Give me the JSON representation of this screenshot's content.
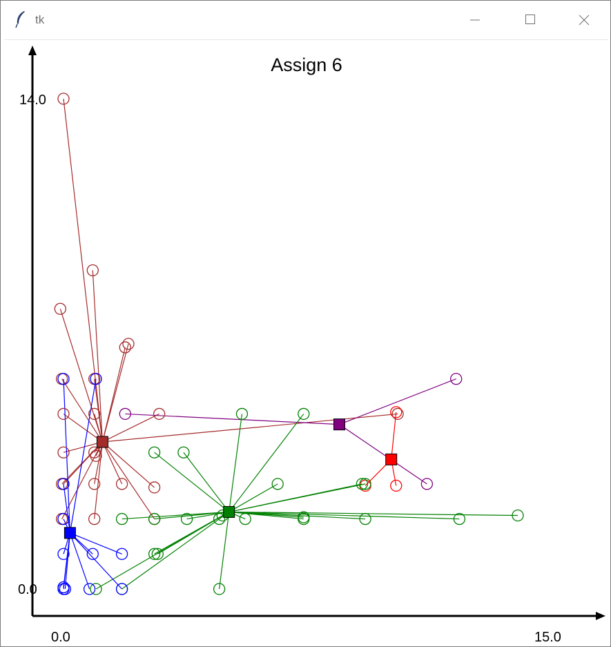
{
  "window": {
    "title": "tk",
    "icon": "feather-icon",
    "controls": [
      "minimize-icon",
      "maximize-icon",
      "close-icon"
    ]
  },
  "chart_data": {
    "type": "scatter",
    "title": "Assign 6",
    "xlabel": "",
    "ylabel": "",
    "xlim": [
      0,
      15
    ],
    "ylim": [
      0,
      14
    ],
    "xticks": [
      "0.0",
      "15.0"
    ],
    "yticks": [
      "0.0",
      "14.0"
    ],
    "grid": false,
    "legend": "none",
    "clusters": [
      {
        "color": "#a52a2a",
        "centroid": [
          1.2,
          4.2
        ],
        "points": [
          [
            0.0,
            14.0
          ],
          [
            0.9,
            9.1
          ],
          [
            -0.1,
            8.0
          ],
          [
            1.9,
            6.9
          ],
          [
            2.0,
            7.0
          ],
          [
            -0.05,
            6.0
          ],
          [
            0.95,
            6.0
          ],
          [
            0.0,
            5.0
          ],
          [
            2.95,
            5.0
          ],
          [
            0.95,
            5.0
          ],
          [
            10.3,
            5.0
          ],
          [
            0.0,
            3.9
          ],
          [
            0.95,
            3.9
          ],
          [
            1.0,
            3.8
          ],
          [
            -0.05,
            3.0
          ],
          [
            0.0,
            3.0
          ],
          [
            0.95,
            3.0
          ],
          [
            1.8,
            3.0
          ],
          [
            2.8,
            2.9
          ],
          [
            0.95,
            2.0
          ],
          [
            -0.05,
            2.0
          ],
          [
            2.8,
            2.0
          ]
        ]
      },
      {
        "color": "#800080",
        "centroid": [
          8.5,
          4.7
        ],
        "points": [
          [
            12.1,
            6.0
          ],
          [
            1.9,
            5.0
          ],
          [
            11.2,
            3.0
          ]
        ]
      },
      {
        "color": "#ff0000",
        "centroid": [
          10.1,
          3.7
        ],
        "points": [
          [
            10.25,
            5.05
          ],
          [
            9.3,
            2.95
          ],
          [
            10.25,
            2.95
          ]
        ]
      },
      {
        "color": "#008000",
        "centroid": [
          5.1,
          2.2
        ],
        "points": [
          [
            5.5,
            5.0
          ],
          [
            7.4,
            5.0
          ],
          [
            2.8,
            3.9
          ],
          [
            3.7,
            3.9
          ],
          [
            6.6,
            3.0
          ],
          [
            9.2,
            3.0
          ],
          [
            9.3,
            3.0
          ],
          [
            1.8,
            2.0
          ],
          [
            2.8,
            2.0
          ],
          [
            3.8,
            2.0
          ],
          [
            4.8,
            2.0
          ],
          [
            4.9,
            2.1
          ],
          [
            5.6,
            2.0
          ],
          [
            7.4,
            2.0
          ],
          [
            7.4,
            2.05
          ],
          [
            9.3,
            2.0
          ],
          [
            12.2,
            2.0
          ],
          [
            14.0,
            2.1
          ],
          [
            2.8,
            1.0
          ],
          [
            2.9,
            1.0
          ],
          [
            1.0,
            0.0
          ],
          [
            1.8,
            0.0
          ],
          [
            4.8,
            0.0
          ]
        ]
      },
      {
        "color": "#0000ff",
        "centroid": [
          0.2,
          1.6
        ],
        "points": [
          [
            0.0,
            6.0
          ],
          [
            1.0,
            6.0
          ],
          [
            0.0,
            3.0
          ],
          [
            0.0,
            2.0
          ],
          [
            0.0,
            1.0
          ],
          [
            0.9,
            1.0
          ],
          [
            1.8,
            1.0
          ],
          [
            0.0,
            0.0
          ],
          [
            0.05,
            0.0
          ],
          [
            0.0,
            0.05
          ],
          [
            0.8,
            0.0
          ],
          [
            1.8,
            0.0
          ]
        ]
      }
    ]
  }
}
